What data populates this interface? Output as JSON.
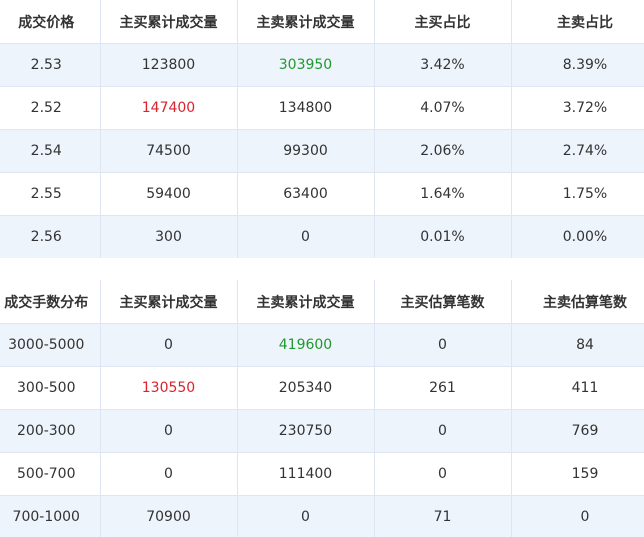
{
  "price_table": {
    "headers": [
      "成交价格",
      "主买累计成交量",
      "主卖累计成交量",
      "主买占比",
      "主卖占比"
    ],
    "rows": [
      [
        "2.53",
        "123800",
        "303950",
        "3.42%",
        "8.39%"
      ],
      [
        "2.52",
        "147400",
        "134800",
        "4.07%",
        "3.72%"
      ],
      [
        "2.54",
        "74500",
        "99300",
        "2.06%",
        "2.74%"
      ],
      [
        "2.55",
        "59400",
        "63400",
        "1.64%",
        "1.75%"
      ],
      [
        "2.56",
        "300",
        "0",
        "0.01%",
        "0.00%"
      ]
    ]
  },
  "lots_table": {
    "headers": [
      "成交手数分布",
      "主买累计成交量",
      "主卖累计成交量",
      "主买估算笔数",
      "主卖估算笔数"
    ],
    "rows": [
      [
        "3000-5000",
        "0",
        "419600",
        "0",
        "84"
      ],
      [
        "300-500",
        "130550",
        "205340",
        "261",
        "411"
      ],
      [
        "200-300",
        "0",
        "230750",
        "0",
        "769"
      ],
      [
        "500-700",
        "0",
        "111400",
        "0",
        "159"
      ],
      [
        "700-1000",
        "70900",
        "0",
        "71",
        "0"
      ]
    ]
  },
  "colors": {
    "highlight_red": "#d9232d",
    "highlight_green": "#1f9a2e",
    "row_stripe": "#eef4fc",
    "border": "#dde6f2"
  }
}
